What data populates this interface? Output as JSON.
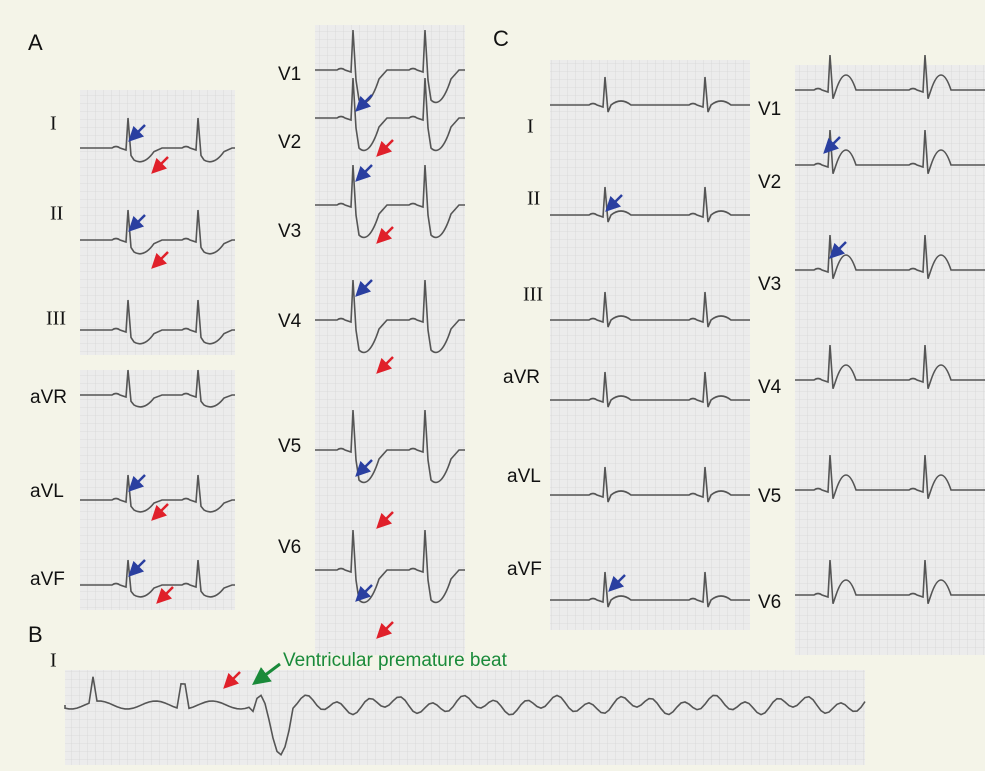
{
  "panels": [
    {
      "label": "A",
      "limb_leads": [
        "I",
        "II",
        "III",
        "aVR",
        "aVL",
        "aVF"
      ],
      "chest_leads": [
        "V1",
        "V2",
        "V3",
        "V4",
        "V5",
        "V6"
      ]
    },
    {
      "label": "B",
      "lead": "I",
      "annotation": "Ventricular premature beat"
    },
    {
      "label": "C",
      "limb_leads": [
        "I",
        "II",
        "III",
        "aVR",
        "aVL",
        "aVF"
      ],
      "chest_leads": [
        "V1",
        "V2",
        "V3",
        "V4",
        "V5",
        "V6"
      ]
    }
  ]
}
